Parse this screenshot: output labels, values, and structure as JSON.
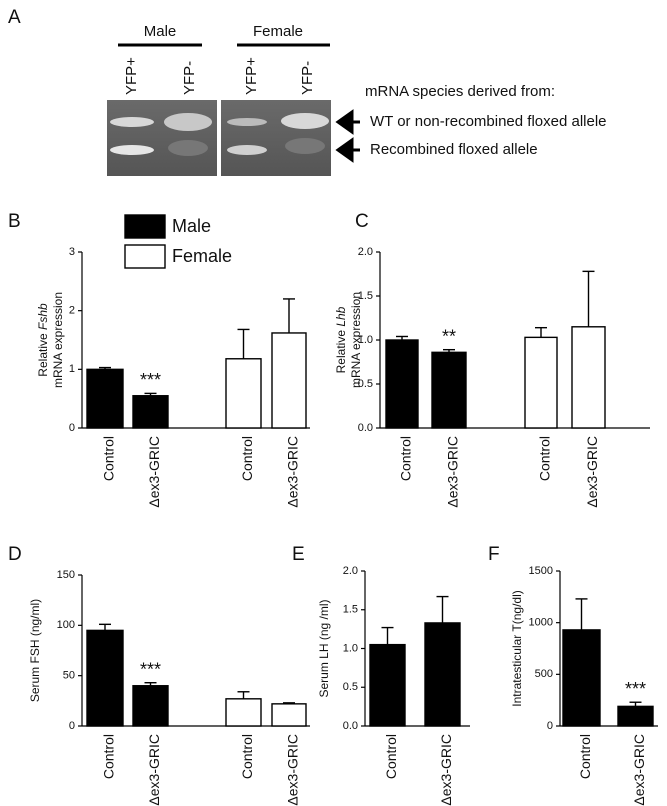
{
  "panel_a": {
    "label": "A",
    "groups": [
      "Male",
      "Female"
    ],
    "lanes": [
      "YFP+",
      "YFP-",
      "YFP+",
      "YFP-"
    ],
    "heading": "mRNA species derived from:",
    "bands": [
      "WT or non-recombined floxed allele",
      "Recombined floxed allele"
    ]
  },
  "chart_data": [
    {
      "type": "bar",
      "panel": "B",
      "ylabel": [
        "Relative",
        "Fshb",
        "mRNA expression"
      ],
      "categories": [
        "Control",
        "Δex3-GRIC",
        "Control",
        "Δex3-GRIC"
      ],
      "series": [
        {
          "name": "Male",
          "color": "#000000",
          "values": [
            1.0,
            0.55,
            null,
            null
          ],
          "errors": [
            0.03,
            0.04,
            null,
            null
          ]
        },
        {
          "name": "Female",
          "color": "#ffffff",
          "values": [
            null,
            null,
            1.18,
            1.62
          ],
          "errors": [
            null,
            null,
            0.5,
            0.58
          ]
        }
      ],
      "significance": [
        null,
        "***",
        null,
        null
      ],
      "ylim": [
        0,
        3
      ],
      "yticks": [
        0,
        1,
        2,
        3
      ]
    },
    {
      "type": "bar",
      "panel": "C",
      "ylabel": [
        "Relative",
        "Lhb",
        "mRNA expression"
      ],
      "categories": [
        "Control",
        "Δex3-GRIC",
        "Control",
        "Δex3-GRIC"
      ],
      "values": [
        1.0,
        0.86,
        1.03,
        1.15
      ],
      "errors": [
        0.04,
        0.03,
        0.11,
        0.63
      ],
      "colors": [
        "#000000",
        "#000000",
        "#ffffff",
        "#ffffff"
      ],
      "significance": [
        null,
        "**",
        null,
        null
      ],
      "ylim": [
        0,
        2
      ],
      "yticks": [
        {
          "value": 0,
          "label": "0.0"
        },
        0.5,
        {
          "value": 1,
          "label": "1.0"
        },
        1.5,
        {
          "value": 2,
          "label": "2.0"
        }
      ]
    },
    {
      "type": "bar",
      "panel": "D",
      "ylabel": "Serum FSH (ng/ml)",
      "categories": [
        "Control",
        "Δex3-GRIC",
        "Control",
        "Δex3-GRIC"
      ],
      "values": [
        95,
        40,
        27,
        22
      ],
      "errors": [
        6,
        3,
        7,
        1
      ],
      "colors": [
        "#000000",
        "#000000",
        "#ffffff",
        "#ffffff"
      ],
      "significance": [
        "",
        "***",
        "",
        ""
      ],
      "ylim": [
        0,
        150
      ],
      "yticks": [
        0,
        50,
        100,
        150
      ]
    },
    {
      "type": "bar",
      "panel": "E",
      "ylabel": "Serum LH (ng /ml)",
      "categories": [
        "Control",
        "Δex3-GRIC"
      ],
      "values": [
        1.05,
        1.33
      ],
      "errors": [
        0.22,
        0.34
      ],
      "colors": [
        "#000000",
        "#000000"
      ],
      "ylim": [
        0,
        2
      ],
      "yticks": [
        {
          "value": 0,
          "label": "0.0"
        },
        0.5,
        {
          "value": 1,
          "label": "1.0"
        },
        1.5,
        {
          "value": 2,
          "label": "2.0"
        }
      ]
    },
    {
      "type": "bar",
      "panel": "F",
      "ylabel": "Intratesticular T(ng/dl)",
      "categories": [
        "Control",
        "Δex3-GRIC"
      ],
      "values": [
        930,
        190
      ],
      "errors": [
        300,
        40
      ],
      "colors": [
        "#000000",
        "#000000"
      ],
      "significance": [
        null,
        "***"
      ],
      "ylim": [
        0,
        1500
      ],
      "yticks": [
        0,
        500,
        1000,
        1500
      ]
    }
  ]
}
